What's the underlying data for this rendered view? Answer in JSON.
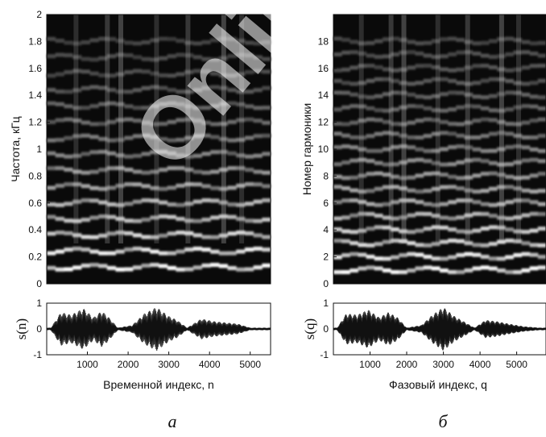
{
  "chart_data": [
    {
      "type": "heatmap",
      "panel": "left",
      "ylabel": "Частота, кГц",
      "ylim": [
        0,
        2
      ],
      "yticks": [
        "0",
        "0.2",
        "0.4",
        "0.6",
        "0.8",
        "1",
        "1.2",
        "1.4",
        "1.6",
        "1.8",
        "2"
      ],
      "xlim": [
        0,
        5600
      ],
      "bands": [
        {
          "f": 0.12,
          "i": 1.0
        },
        {
          "f": 0.24,
          "i": 0.95
        },
        {
          "f": 0.36,
          "i": 0.85
        },
        {
          "f": 0.48,
          "i": 0.75
        },
        {
          "f": 0.6,
          "i": 0.7
        },
        {
          "f": 0.72,
          "i": 0.6
        },
        {
          "f": 0.84,
          "i": 0.55
        },
        {
          "f": 0.96,
          "i": 0.45
        },
        {
          "f": 1.08,
          "i": 0.4
        },
        {
          "f": 1.2,
          "i": 0.35
        },
        {
          "f": 1.32,
          "i": 0.3
        },
        {
          "f": 1.44,
          "i": 0.25
        },
        {
          "f": 1.56,
          "i": 0.2
        },
        {
          "f": 1.68,
          "i": 0.18
        },
        {
          "f": 1.8,
          "i": 0.15
        }
      ]
    },
    {
      "type": "heatmap",
      "panel": "right",
      "ylabel": "Номер гармоники",
      "ylim": [
        0,
        20
      ],
      "yticks": [
        "0",
        "2",
        "4",
        "6",
        "8",
        "10",
        "12",
        "14",
        "16",
        "18"
      ],
      "xlim": [
        0,
        5800
      ],
      "bands": [
        {
          "f": 1,
          "i": 1.0
        },
        {
          "f": 2,
          "i": 0.95
        },
        {
          "f": 3,
          "i": 0.85
        },
        {
          "f": 4,
          "i": 0.8
        },
        {
          "f": 5,
          "i": 0.7
        },
        {
          "f": 6,
          "i": 0.65
        },
        {
          "f": 7,
          "i": 0.6
        },
        {
          "f": 8,
          "i": 0.55
        },
        {
          "f": 9,
          "i": 0.5
        },
        {
          "f": 10,
          "i": 0.45
        },
        {
          "f": 11,
          "i": 0.4
        },
        {
          "f": 12,
          "i": 0.35
        },
        {
          "f": 13,
          "i": 0.3
        },
        {
          "f": 14,
          "i": 0.28
        },
        {
          "f": 15,
          "i": 0.25
        },
        {
          "f": 16,
          "i": 0.22
        },
        {
          "f": 17,
          "i": 0.2
        },
        {
          "f": 18,
          "i": 0.18
        }
      ]
    },
    {
      "type": "line",
      "panel": "left",
      "ylabel": "s(n)",
      "ylim": [
        -1,
        1
      ],
      "yticks": [
        "-1",
        "0",
        "1"
      ],
      "xlim": [
        0,
        5500
      ],
      "xticks": [
        "1000",
        "2000",
        "3000",
        "4000",
        "5000"
      ],
      "xlabel": "Временной индекс, n",
      "envelope": [
        {
          "x": 100,
          "a": 0.05
        },
        {
          "x": 350,
          "a": 0.65
        },
        {
          "x": 600,
          "a": 0.55
        },
        {
          "x": 900,
          "a": 0.8
        },
        {
          "x": 1150,
          "a": 0.45
        },
        {
          "x": 1350,
          "a": 0.7
        },
        {
          "x": 1500,
          "a": 0.5
        },
        {
          "x": 1750,
          "a": 0.05
        },
        {
          "x": 2100,
          "a": 0.15
        },
        {
          "x": 2400,
          "a": 0.6
        },
        {
          "x": 2700,
          "a": 0.85
        },
        {
          "x": 3000,
          "a": 0.5
        },
        {
          "x": 3200,
          "a": 0.35
        },
        {
          "x": 3450,
          "a": 0.05
        },
        {
          "x": 3800,
          "a": 0.4
        },
        {
          "x": 4100,
          "a": 0.3
        },
        {
          "x": 4400,
          "a": 0.25
        },
        {
          "x": 4700,
          "a": 0.2
        },
        {
          "x": 5000,
          "a": 0.05
        }
      ]
    },
    {
      "type": "line",
      "panel": "right",
      "ylabel": "s(q)",
      "ylim": [
        -1,
        1
      ],
      "yticks": [
        "-1",
        "0",
        "1"
      ],
      "xlim": [
        0,
        5800
      ],
      "xticks": [
        "1000",
        "2000",
        "3000",
        "4000",
        "5000"
      ],
      "xlabel": "Фазовый индекс, q",
      "envelope": [
        {
          "x": 100,
          "a": 0.05
        },
        {
          "x": 350,
          "a": 0.6
        },
        {
          "x": 650,
          "a": 0.55
        },
        {
          "x": 950,
          "a": 0.75
        },
        {
          "x": 1250,
          "a": 0.45
        },
        {
          "x": 1500,
          "a": 0.65
        },
        {
          "x": 1750,
          "a": 0.45
        },
        {
          "x": 2000,
          "a": 0.05
        },
        {
          "x": 2400,
          "a": 0.15
        },
        {
          "x": 2700,
          "a": 0.55
        },
        {
          "x": 3000,
          "a": 0.85
        },
        {
          "x": 3300,
          "a": 0.5
        },
        {
          "x": 3550,
          "a": 0.3
        },
        {
          "x": 3850,
          "a": 0.05
        },
        {
          "x": 4150,
          "a": 0.35
        },
        {
          "x": 4450,
          "a": 0.3
        },
        {
          "x": 4800,
          "a": 0.2
        },
        {
          "x": 5200,
          "a": 0.1
        },
        {
          "x": 5600,
          "a": 0.05
        }
      ]
    }
  ],
  "panel_labels": {
    "left": "а",
    "right": "б"
  },
  "watermark": "Online"
}
